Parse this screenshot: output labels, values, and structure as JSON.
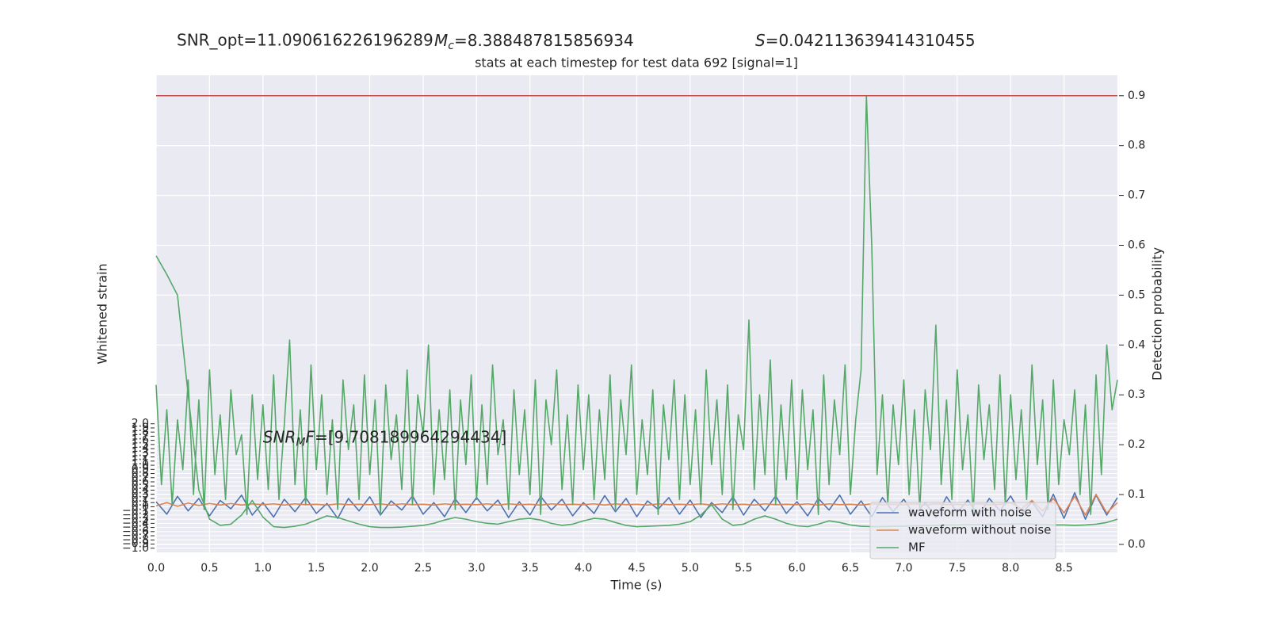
{
  "chart_data": {
    "type": "line",
    "annotations": {
      "snr_opt": "SNR_opt=11.090616226196289",
      "mc": {
        "symbol": "M",
        "sub": "c",
        "text": "=8.388487815856934"
      },
      "s": {
        "symbol": "S",
        "text": "=0.042113639414310455"
      },
      "snr_mf": {
        "symbol": "SNR",
        "sub": "M",
        "rest": "F",
        "text": "=[9.708189964294434]",
        "x": 1.0,
        "y": 1.66
      }
    },
    "title": "stats at each timestep for test data 692 [signal=1]",
    "xlabel": "Time (s)",
    "ylabel": "Whitened strain",
    "y2label": "Detection probability",
    "xlim": [
      0,
      9
    ],
    "ylim": [
      -1.1,
      10.4
    ],
    "y2lim": [
      -0.016,
      0.941
    ],
    "grid": true,
    "legend": "lower right",
    "xticks": [
      {
        "value": 0,
        "label": "0.0"
      },
      {
        "value": 0.5,
        "label": "0.5"
      },
      {
        "value": 1,
        "label": "1.0"
      },
      {
        "value": 1.5,
        "label": "1.5"
      },
      {
        "value": 2,
        "label": "2.0"
      },
      {
        "value": 2.5,
        "label": "2.5"
      },
      {
        "value": 3,
        "label": "3.0"
      },
      {
        "value": 3.5,
        "label": "3.5"
      },
      {
        "value": 4,
        "label": "4.0"
      },
      {
        "value": 4.5,
        "label": "4.5"
      },
      {
        "value": 5,
        "label": "5.0"
      },
      {
        "value": 5.5,
        "label": "5.5"
      },
      {
        "value": 6,
        "label": "6.0"
      },
      {
        "value": 6.5,
        "label": "6.5"
      },
      {
        "value": 7,
        "label": "7.0"
      },
      {
        "value": 7.5,
        "label": "7.5"
      },
      {
        "value": 8,
        "label": "8.0"
      },
      {
        "value": 8.5,
        "label": "8.5"
      }
    ],
    "yticks": [
      {
        "value": -1.0,
        "label": "−1.0"
      },
      {
        "value": -0.9,
        "label": "−0.9"
      },
      {
        "value": -0.8,
        "label": "−0.8"
      },
      {
        "value": -0.7,
        "label": "−0.7"
      },
      {
        "value": -0.6,
        "label": "−0.6"
      },
      {
        "value": -0.5,
        "label": "−0.5"
      },
      {
        "value": -0.4,
        "label": "−0.4"
      },
      {
        "value": -0.3,
        "label": "−0.3"
      },
      {
        "value": -0.2,
        "label": "−0.2"
      },
      {
        "value": -0.1,
        "label": "−0.1"
      },
      {
        "value": 0,
        "label": "0.0"
      },
      {
        "value": 0.1,
        "label": "0.1"
      },
      {
        "value": 0.2,
        "label": "0.2"
      },
      {
        "value": 0.3,
        "label": "0.3"
      },
      {
        "value": 0.4,
        "label": "0.4"
      },
      {
        "value": 0.5,
        "label": "0.5"
      },
      {
        "value": 0.6,
        "label": "0.6"
      },
      {
        "value": 0.7,
        "label": "0.7"
      },
      {
        "value": 0.8,
        "label": "0.8"
      },
      {
        "value": 0.9,
        "label": "0.9"
      },
      {
        "value": 1.0,
        "label": "1.0"
      },
      {
        "value": 1.1,
        "label": "1.1"
      },
      {
        "value": 1.2,
        "label": "1.2"
      },
      {
        "value": 1.3,
        "label": "1.3"
      },
      {
        "value": 1.4,
        "label": "1.4"
      },
      {
        "value": 1.5,
        "label": "1.5"
      },
      {
        "value": 1.6,
        "label": "1.6"
      },
      {
        "value": 1.7,
        "label": "1.7"
      },
      {
        "value": 1.8,
        "label": "1.8"
      },
      {
        "value": 1.9,
        "label": "1.9"
      },
      {
        "value": 2.0,
        "label": "2.0"
      }
    ],
    "y2ticks": [
      {
        "value": 0,
        "label": "0.0"
      },
      {
        "value": 0.1,
        "label": "0.1"
      },
      {
        "value": 0.2,
        "label": "0.2"
      },
      {
        "value": 0.3,
        "label": "0.3"
      },
      {
        "value": 0.4,
        "label": "0.4"
      },
      {
        "value": 0.5,
        "label": "0.5"
      },
      {
        "value": 0.6,
        "label": "0.6"
      },
      {
        "value": 0.7,
        "label": "0.7"
      },
      {
        "value": 0.8,
        "label": "0.8"
      },
      {
        "value": 0.9,
        "label": "0.9"
      }
    ],
    "threshold": {
      "value": 0.9,
      "color": "#c44e52",
      "axis": "y2"
    },
    "series": [
      {
        "name": "waveform with noise",
        "color": "#4c72b0",
        "axis": "y",
        "x": [
          0,
          0.1,
          0.2,
          0.3,
          0.4,
          0.5,
          0.6,
          0.7,
          0.8,
          0.9,
          1,
          1.1,
          1.2,
          1.3,
          1.4,
          1.5,
          1.6,
          1.7,
          1.8,
          1.9,
          2,
          2.1,
          2.2,
          2.3,
          2.4,
          2.5,
          2.6,
          2.7,
          2.8,
          2.9,
          3,
          3.1,
          3.2,
          3.3,
          3.4,
          3.5,
          3.6,
          3.7,
          3.8,
          3.9,
          4,
          4.1,
          4.2,
          4.3,
          4.4,
          4.5,
          4.6,
          4.7,
          4.8,
          4.9,
          5,
          5.1,
          5.2,
          5.3,
          5.4,
          5.5,
          5.6,
          5.7,
          5.8,
          5.9,
          6,
          6.1,
          6.2,
          6.3,
          6.4,
          6.5,
          6.6,
          6.7,
          6.8,
          6.9,
          7,
          7.1,
          7.2,
          7.3,
          7.4,
          7.5,
          7.6,
          7.7,
          7.8,
          7.9,
          8,
          8.1,
          8.2,
          8.3,
          8.4,
          8.5,
          8.6,
          8.7,
          8.8,
          8.9,
          9
        ],
        "values": [
          0.12,
          -0.18,
          0.25,
          -0.1,
          0.2,
          -0.22,
          0.15,
          -0.05,
          0.28,
          -0.2,
          0.1,
          -0.25,
          0.18,
          -0.12,
          0.22,
          -0.16,
          0.08,
          -0.28,
          0.2,
          -0.1,
          0.24,
          -0.2,
          0.14,
          -0.08,
          0.26,
          -0.18,
          0.1,
          -0.24,
          0.19,
          -0.14,
          0.22,
          -0.1,
          0.16,
          -0.26,
          0.12,
          -0.2,
          0.25,
          -0.08,
          0.18,
          -0.22,
          0.1,
          -0.16,
          0.27,
          -0.12,
          0.2,
          -0.24,
          0.14,
          -0.06,
          0.22,
          -0.18,
          0.16,
          -0.26,
          0.1,
          -0.14,
          0.24,
          -0.2,
          0.18,
          -0.1,
          0.26,
          -0.16,
          0.12,
          -0.22,
          0.2,
          -0.08,
          0.28,
          -0.18,
          0.14,
          -0.24,
          0.22,
          -0.12,
          0.18,
          -0.2,
          0.1,
          -0.26,
          0.24,
          -0.14,
          0.16,
          -0.22,
          0.2,
          -0.1,
          0.26,
          -0.18,
          0.12,
          -0.24,
          0.3,
          -0.28,
          0.34,
          -0.3,
          0.28,
          -0.2,
          0.22
        ]
      },
      {
        "name": "waveform without noise",
        "color": "#dd8452",
        "axis": "y",
        "x": [
          0,
          0.1,
          0.2,
          0.3,
          0.4,
          0.5,
          0.6,
          0.7,
          0.8,
          0.9,
          1,
          1.1,
          1.2,
          1.3,
          1.4,
          1.5,
          1.6,
          1.7,
          1.8,
          1.9,
          2,
          2.1,
          2.2,
          2.3,
          2.4,
          2.5,
          2.6,
          2.7,
          2.8,
          2.9,
          3,
          3.1,
          3.2,
          3.3,
          3.4,
          3.5,
          3.6,
          3.7,
          3.8,
          3.9,
          4,
          4.1,
          4.2,
          4.3,
          4.4,
          4.5,
          4.6,
          4.7,
          4.8,
          4.9,
          5,
          5.1,
          5.2,
          5.3,
          5.4,
          5.5,
          5.6,
          5.7,
          5.8,
          5.9,
          6,
          6.1,
          6.2,
          6.3,
          6.4,
          6.5,
          6.6,
          6.7,
          6.8,
          6.9,
          7,
          7.1,
          7.2,
          7.3,
          7.4,
          7.5,
          7.6,
          7.7,
          7.8,
          7.9,
          8,
          8.1,
          8.2,
          8.3,
          8.4,
          8.5,
          8.6,
          8.7,
          8.8,
          8.9,
          9
        ],
        "values": [
          0.02,
          0.1,
          0.01,
          0.09,
          0.03,
          0.08,
          0.04,
          0.08,
          0.04,
          0.07,
          0.05,
          0.07,
          0.04,
          0.07,
          0.05,
          0.06,
          0.04,
          0.07,
          0.05,
          0.06,
          0.05,
          0.07,
          0.04,
          0.07,
          0.05,
          0.06,
          0.04,
          0.07,
          0.05,
          0.06,
          0.05,
          0.07,
          0.04,
          0.07,
          0.05,
          0.06,
          0.04,
          0.07,
          0.05,
          0.06,
          0.05,
          0.07,
          0.04,
          0.07,
          0.05,
          0.06,
          0.04,
          0.07,
          0.05,
          0.06,
          0.05,
          0.07,
          0.04,
          0.07,
          0.05,
          0.06,
          0.04,
          0.07,
          0.05,
          0.06,
          0.05,
          0.07,
          0.04,
          0.07,
          0.05,
          0.06,
          0.04,
          0.07,
          0.05,
          0.06,
          0.05,
          0.07,
          0.04,
          0.07,
          0.05,
          0.06,
          0.04,
          0.07,
          0.05,
          0.06,
          0.1,
          -0.05,
          0.15,
          -0.1,
          0.2,
          -0.15,
          0.25,
          -0.2,
          0.3,
          -0.15,
          0.1
        ]
      },
      {
        "name": "MF",
        "color": "#55a868",
        "axis": "y",
        "x": [
          0,
          0.1,
          0.2,
          0.3,
          0.4,
          0.5,
          0.6,
          0.7,
          0.8,
          0.9,
          1,
          1.1,
          1.2,
          1.3,
          1.4,
          1.5,
          1.6,
          1.7,
          1.8,
          1.9,
          2,
          2.1,
          2.2,
          2.3,
          2.4,
          2.5,
          2.6,
          2.7,
          2.8,
          2.9,
          3,
          3.1,
          3.2,
          3.3,
          3.4,
          3.5,
          3.6,
          3.7,
          3.8,
          3.9,
          4,
          4.1,
          4.2,
          4.3,
          4.4,
          4.5,
          4.6,
          4.7,
          4.8,
          4.9,
          5,
          5.1,
          5.2,
          5.3,
          5.4,
          5.5,
          5.6,
          5.7,
          5.8,
          5.9,
          6,
          6.1,
          6.2,
          6.3,
          6.4,
          6.5,
          6.6,
          6.7,
          6.8,
          6.9,
          7,
          7.1,
          7.2,
          7.3,
          7.4,
          7.5,
          7.6,
          7.7,
          7.8,
          7.9,
          8,
          8.1,
          8.2,
          8.3,
          8.4,
          8.5,
          8.6,
          8.7,
          8.8,
          8.9,
          9
        ],
        "values": [
          6.05,
          5.6,
          5.1,
          2.7,
          0.4,
          -0.3,
          -0.45,
          -0.42,
          -0.2,
          0.15,
          -0.25,
          -0.48,
          -0.5,
          -0.47,
          -0.42,
          -0.32,
          -0.22,
          -0.26,
          -0.34,
          -0.42,
          -0.48,
          -0.5,
          -0.5,
          -0.49,
          -0.47,
          -0.45,
          -0.4,
          -0.32,
          -0.26,
          -0.3,
          -0.36,
          -0.4,
          -0.42,
          -0.36,
          -0.3,
          -0.28,
          -0.32,
          -0.4,
          -0.45,
          -0.42,
          -0.34,
          -0.28,
          -0.3,
          -0.38,
          -0.45,
          -0.48,
          -0.47,
          -0.46,
          -0.45,
          -0.42,
          -0.36,
          -0.2,
          0.05,
          -0.3,
          -0.45,
          -0.42,
          -0.3,
          -0.22,
          -0.3,
          -0.4,
          -0.46,
          -0.48,
          -0.42,
          -0.34,
          -0.38,
          -0.44,
          -0.47,
          -0.48,
          -0.48,
          -0.47,
          -0.47,
          -0.46,
          -0.46,
          -0.45,
          -0.44,
          -0.44,
          -0.43,
          -0.43,
          -0.42,
          -0.42,
          -0.42,
          -0.41,
          -0.42,
          -0.43,
          -0.44,
          -0.44,
          -0.45,
          -0.44,
          -0.42,
          -0.38,
          -0.3
        ]
      },
      {
        "color": "#55a868",
        "axis": "y2",
        "x": [
          0,
          0.05,
          0.1,
          0.15,
          0.2,
          0.25,
          0.3,
          0.35,
          0.4,
          0.45,
          0.5,
          0.55,
          0.6,
          0.65,
          0.7,
          0.75,
          0.8,
          0.85,
          0.9,
          0.95,
          1,
          1.05,
          1.1,
          1.15,
          1.2,
          1.25,
          1.3,
          1.35,
          1.4,
          1.45,
          1.5,
          1.55,
          1.6,
          1.65,
          1.7,
          1.75,
          1.8,
          1.85,
          1.9,
          1.95,
          2,
          2.05,
          2.1,
          2.15,
          2.2,
          2.25,
          2.3,
          2.35,
          2.4,
          2.45,
          2.5,
          2.55,
          2.6,
          2.65,
          2.7,
          2.75,
          2.8,
          2.85,
          2.9,
          2.95,
          3,
          3.05,
          3.1,
          3.15,
          3.2,
          3.25,
          3.3,
          3.35,
          3.4,
          3.45,
          3.5,
          3.55,
          3.6,
          3.65,
          3.7,
          3.75,
          3.8,
          3.85,
          3.9,
          3.95,
          4,
          4.05,
          4.1,
          4.15,
          4.2,
          4.25,
          4.3,
          4.35,
          4.4,
          4.45,
          4.5,
          4.55,
          4.6,
          4.65,
          4.7,
          4.75,
          4.8,
          4.85,
          4.9,
          4.95,
          5,
          5.05,
          5.1,
          5.15,
          5.2,
          5.25,
          5.3,
          5.35,
          5.4,
          5.45,
          5.5,
          5.55,
          5.6,
          5.65,
          5.7,
          5.75,
          5.8,
          5.85,
          5.9,
          5.95,
          6,
          6.05,
          6.1,
          6.15,
          6.2,
          6.25,
          6.3,
          6.35,
          6.4,
          6.45,
          6.5,
          6.55,
          6.6,
          6.65,
          6.7,
          6.75,
          6.8,
          6.85,
          6.9,
          6.95,
          7,
          7.05,
          7.1,
          7.15,
          7.2,
          7.25,
          7.3,
          7.35,
          7.4,
          7.45,
          7.5,
          7.55,
          7.6,
          7.65,
          7.7,
          7.75,
          7.8,
          7.85,
          7.9,
          7.95,
          8,
          8.05,
          8.1,
          8.15,
          8.2,
          8.25,
          8.3,
          8.35,
          8.4,
          8.45,
          8.5,
          8.55,
          8.6,
          8.65,
          8.7,
          8.75,
          8.8,
          8.85,
          8.9,
          8.95,
          9
        ],
        "values": [
          0.32,
          0.12,
          0.27,
          0.08,
          0.25,
          0.15,
          0.33,
          0.1,
          0.29,
          0.07,
          0.35,
          0.14,
          0.26,
          0.09,
          0.31,
          0.18,
          0.22,
          0.06,
          0.3,
          0.13,
          0.28,
          0.11,
          0.34,
          0.09,
          0.24,
          0.41,
          0.12,
          0.27,
          0.08,
          0.36,
          0.15,
          0.3,
          0.1,
          0.25,
          0.07,
          0.33,
          0.19,
          0.28,
          0.09,
          0.34,
          0.14,
          0.29,
          0.06,
          0.32,
          0.17,
          0.26,
          0.11,
          0.35,
          0.08,
          0.3,
          0.22,
          0.4,
          0.1,
          0.27,
          0.13,
          0.31,
          0.07,
          0.29,
          0.16,
          0.34,
          0.09,
          0.28,
          0.12,
          0.36,
          0.18,
          0.25,
          0.07,
          0.31,
          0.14,
          0.27,
          0.1,
          0.33,
          0.06,
          0.29,
          0.2,
          0.35,
          0.11,
          0.26,
          0.08,
          0.32,
          0.15,
          0.3,
          0.09,
          0.27,
          0.13,
          0.34,
          0.07,
          0.29,
          0.18,
          0.36,
          0.1,
          0.25,
          0.14,
          0.31,
          0.06,
          0.28,
          0.17,
          0.33,
          0.09,
          0.3,
          0.12,
          0.27,
          0.08,
          0.35,
          0.16,
          0.29,
          0.1,
          0.32,
          0.07,
          0.26,
          0.19,
          0.45,
          0.11,
          0.3,
          0.14,
          0.37,
          0.08,
          0.28,
          0.13,
          0.33,
          0.09,
          0.31,
          0.15,
          0.27,
          0.06,
          0.34,
          0.12,
          0.29,
          0.18,
          0.36,
          0.1,
          0.25,
          0.35,
          0.9,
          0.6,
          0.14,
          0.3,
          0.08,
          0.28,
          0.16,
          0.33,
          0.1,
          0.27,
          0.07,
          0.31,
          0.19,
          0.44,
          0.12,
          0.29,
          0.09,
          0.35,
          0.15,
          0.26,
          0.06,
          0.32,
          0.17,
          0.28,
          0.11,
          0.34,
          0.08,
          0.3,
          0.13,
          0.27,
          0.09,
          0.36,
          0.16,
          0.29,
          0.07,
          0.33,
          0.12,
          0.25,
          0.18,
          0.31,
          0.1,
          0.28,
          0.06,
          0.34,
          0.14,
          0.4,
          0.27,
          0.33
        ]
      }
    ]
  }
}
